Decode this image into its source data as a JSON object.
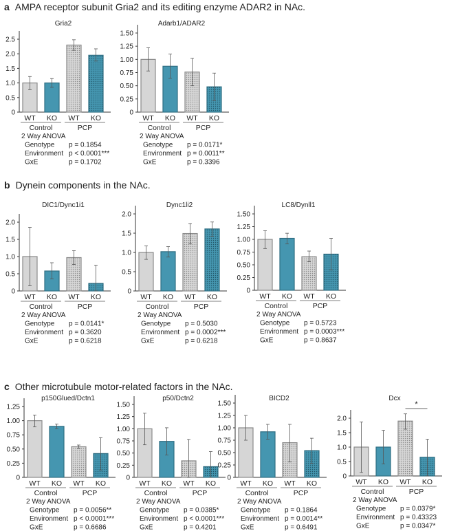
{
  "sections": [
    {
      "letter": "a",
      "title": "AMPA receptor subunit Gria2 and its editing enzyme ADAR2 in NAc."
    },
    {
      "letter": "b",
      "title": "Dynein components in the NAc."
    },
    {
      "letter": "c",
      "title": "Other microtubule motor-related factors in the NAc."
    }
  ],
  "colors": {
    "wt": "#d6d6d6",
    "wt_stroke": "#8a8a8a",
    "ko": "#4596b0",
    "ko_stroke": "#2e6d82",
    "dots_wt": "#8c8c8c",
    "dots_ko": "#24596b"
  },
  "chart_data": [
    {
      "type": "bar",
      "title": "Gria2",
      "categories": [
        "WT",
        "KO",
        "WT",
        "KO"
      ],
      "groups": [
        "Control",
        "PCP"
      ],
      "values": [
        1.0,
        1.0,
        2.3,
        1.95
      ],
      "error_low": [
        0.77,
        0.85,
        2.12,
        1.75
      ],
      "error_high": [
        1.22,
        1.15,
        2.48,
        2.17
      ],
      "yticks": [
        "0",
        "0.5",
        "1.0",
        "1.5",
        "2.0",
        "2.5"
      ],
      "ylim": [
        0,
        2.5
      ],
      "anova": {
        "heading": "2 Way ANOVA",
        "rows": [
          {
            "label": "Genotype",
            "p": "p = 0.1854"
          },
          {
            "label": "Environment",
            "p": "p < 0.0001***"
          },
          {
            "label": "GxE",
            "p": "p = 0.1702"
          }
        ]
      }
    },
    {
      "type": "bar",
      "title": "Adarb1/ADAR2",
      "categories": [
        "WT",
        "KO",
        "WT",
        "KO"
      ],
      "groups": [
        "Control",
        "PCP"
      ],
      "values": [
        1.0,
        0.87,
        0.76,
        0.48
      ],
      "error_low": [
        0.78,
        0.64,
        0.5,
        0.22
      ],
      "error_high": [
        1.22,
        1.1,
        1.02,
        0.74
      ],
      "yticks": [
        "0",
        "0.25",
        "0.50",
        "0.75",
        "1.00",
        "1.25",
        "1.50"
      ],
      "ylim": [
        0,
        1.5
      ],
      "anova": {
        "heading": "2 Way ANOVA",
        "rows": [
          {
            "label": "Genotype",
            "p": "p = 0.0171*"
          },
          {
            "label": "Environment",
            "p": "p = 0.0011**"
          },
          {
            "label": "GxE",
            "p": "p = 0.3396"
          }
        ]
      }
    },
    {
      "type": "bar",
      "title": "DIC1/Dync1i1",
      "categories": [
        "WT",
        "KO",
        "WT",
        "KO"
      ],
      "groups": [
        "Control",
        "PCP"
      ],
      "values": [
        1.0,
        0.58,
        0.97,
        0.22
      ],
      "error_low": [
        0.15,
        0.35,
        0.77,
        0.0
      ],
      "error_high": [
        1.85,
        0.82,
        1.17,
        0.75
      ],
      "yticks": [
        "0",
        "0.5",
        "1.0",
        "1.5",
        "2.0"
      ],
      "ylim": [
        0,
        2.0
      ],
      "anova": {
        "heading": "2 Way ANOVA",
        "rows": [
          {
            "label": "Genotype",
            "p": "p = 0.0141*"
          },
          {
            "label": "Environment",
            "p": "p = 0.3620"
          },
          {
            "label": "GxE",
            "p": "p = 0.6218"
          }
        ]
      }
    },
    {
      "type": "bar",
      "title": "Dync1li2",
      "categories": [
        "WT",
        "KO",
        "WT",
        "KO"
      ],
      "groups": [
        "Control",
        "PCP"
      ],
      "values": [
        1.0,
        1.02,
        1.49,
        1.61
      ],
      "error_low": [
        0.82,
        0.88,
        1.22,
        1.42
      ],
      "error_high": [
        1.17,
        1.15,
        1.75,
        1.79
      ],
      "yticks": [
        "0",
        "0.5",
        "1.0",
        "1.5",
        "2.0"
      ],
      "ylim": [
        0,
        2.0
      ],
      "anova": {
        "heading": "2 Way ANOVA",
        "rows": [
          {
            "label": "Genotype",
            "p": "p = 0.5030"
          },
          {
            "label": "Environment",
            "p": "p = 0.0002***"
          },
          {
            "label": "GxE",
            "p": "p = 0.6218"
          }
        ]
      }
    },
    {
      "type": "bar",
      "title": "LC8/Dynll1",
      "categories": [
        "WT",
        "KO",
        "WT",
        "KO"
      ],
      "groups": [
        "Control",
        "PCP"
      ],
      "values": [
        1.0,
        1.02,
        0.66,
        0.71
      ],
      "error_low": [
        0.82,
        0.91,
        0.56,
        0.4
      ],
      "error_high": [
        1.17,
        1.12,
        0.77,
        1.02
      ],
      "yticks": [
        "0",
        "0.25",
        "0.50",
        "0.75",
        "1.00",
        "1.25",
        "1.50"
      ],
      "ylim": [
        0,
        1.5
      ],
      "anova": {
        "heading": "2 Way ANOVA",
        "rows": [
          {
            "label": "Genotype",
            "p": "p = 0.5723"
          },
          {
            "label": "Environment",
            "p": "p = 0.0003***"
          },
          {
            "label": "GxE",
            "p": "p = 0.8637"
          }
        ]
      }
    },
    {
      "type": "bar",
      "title": "p150Glued/Dctn1",
      "categories": [
        "WT",
        "KO",
        "WT",
        "KO"
      ],
      "groups": [
        "Control",
        "PCP"
      ],
      "values": [
        1.0,
        0.9,
        0.54,
        0.42
      ],
      "error_low": [
        0.89,
        0.86,
        0.51,
        0.13
      ],
      "error_high": [
        1.1,
        0.94,
        0.57,
        0.7
      ],
      "yticks": [
        "0",
        "0.25",
        "0.50",
        "0.75",
        "1.00",
        "1.25"
      ],
      "ylim": [
        0,
        1.25
      ],
      "anova": {
        "heading": "2 Way ANOVA",
        "rows": [
          {
            "label": "Genotype",
            "p": "p = 0.0056**"
          },
          {
            "label": "Environment",
            "p": "p < 0.0001***"
          },
          {
            "label": "GxE",
            "p": "p = 0.6686"
          }
        ]
      }
    },
    {
      "type": "bar",
      "title": "p50/Dctn2",
      "categories": [
        "WT",
        "KO",
        "WT",
        "KO"
      ],
      "groups": [
        "Control",
        "PCP"
      ],
      "values": [
        1.0,
        0.74,
        0.34,
        0.22
      ],
      "error_low": [
        0.67,
        0.46,
        0.0,
        0.0
      ],
      "error_high": [
        1.32,
        1.02,
        0.78,
        0.53
      ],
      "yticks": [
        "0",
        "0.25",
        "0.50",
        "0.75",
        "1.00",
        "1.25",
        "1.50"
      ],
      "ylim": [
        0,
        1.5
      ],
      "anova": {
        "heading": "2 Way ANOVA",
        "rows": [
          {
            "label": "Genotype",
            "p": "p = 0.0385*"
          },
          {
            "label": "Environment",
            "p": "p < 0.0001***"
          },
          {
            "label": "GxE",
            "p": "p = 0.4201"
          }
        ]
      }
    },
    {
      "type": "bar",
      "title": "BICD2",
      "categories": [
        "WT",
        "KO",
        "WT",
        "KO"
      ],
      "groups": [
        "Control",
        "PCP"
      ],
      "values": [
        1.0,
        0.92,
        0.7,
        0.54
      ],
      "error_low": [
        0.75,
        0.77,
        0.31,
        0.28
      ],
      "error_high": [
        1.25,
        1.07,
        1.07,
        0.79
      ],
      "yticks": [
        "0",
        "0.25",
        "0.50",
        "0.75",
        "1.00",
        "1.25",
        "1.50"
      ],
      "ylim": [
        0,
        1.5
      ],
      "anova": {
        "heading": "2 Way ANOVA",
        "rows": [
          {
            "label": "Genotype",
            "p": "p = 0.1864"
          },
          {
            "label": "Environment",
            "p": "p = 0.0014**"
          },
          {
            "label": "GxE",
            "p": "p = 0.6491"
          }
        ]
      }
    },
    {
      "type": "bar",
      "title": "Dcx",
      "categories": [
        "WT",
        "KO",
        "WT",
        "KO"
      ],
      "groups": [
        "Control",
        "PCP"
      ],
      "values": [
        1.0,
        1.0,
        1.9,
        0.65
      ],
      "error_low": [
        0.12,
        0.42,
        1.62,
        0.0
      ],
      "error_high": [
        1.87,
        1.58,
        2.15,
        1.27
      ],
      "yticks": [
        "0",
        "0.5",
        "1.0",
        "1.5",
        "2.0"
      ],
      "ylim": [
        0,
        2.0
      ],
      "annotations": [
        {
          "between": [
            2,
            3
          ],
          "text": "*"
        }
      ],
      "anova": {
        "heading": "2 Way ANOVA",
        "rows": [
          {
            "label": "Genotype",
            "p": "p = 0.0379*"
          },
          {
            "label": "Environment",
            "p": "p = 0.43323"
          },
          {
            "label": "GxE",
            "p": "p = 0.0347*"
          }
        ]
      }
    }
  ]
}
